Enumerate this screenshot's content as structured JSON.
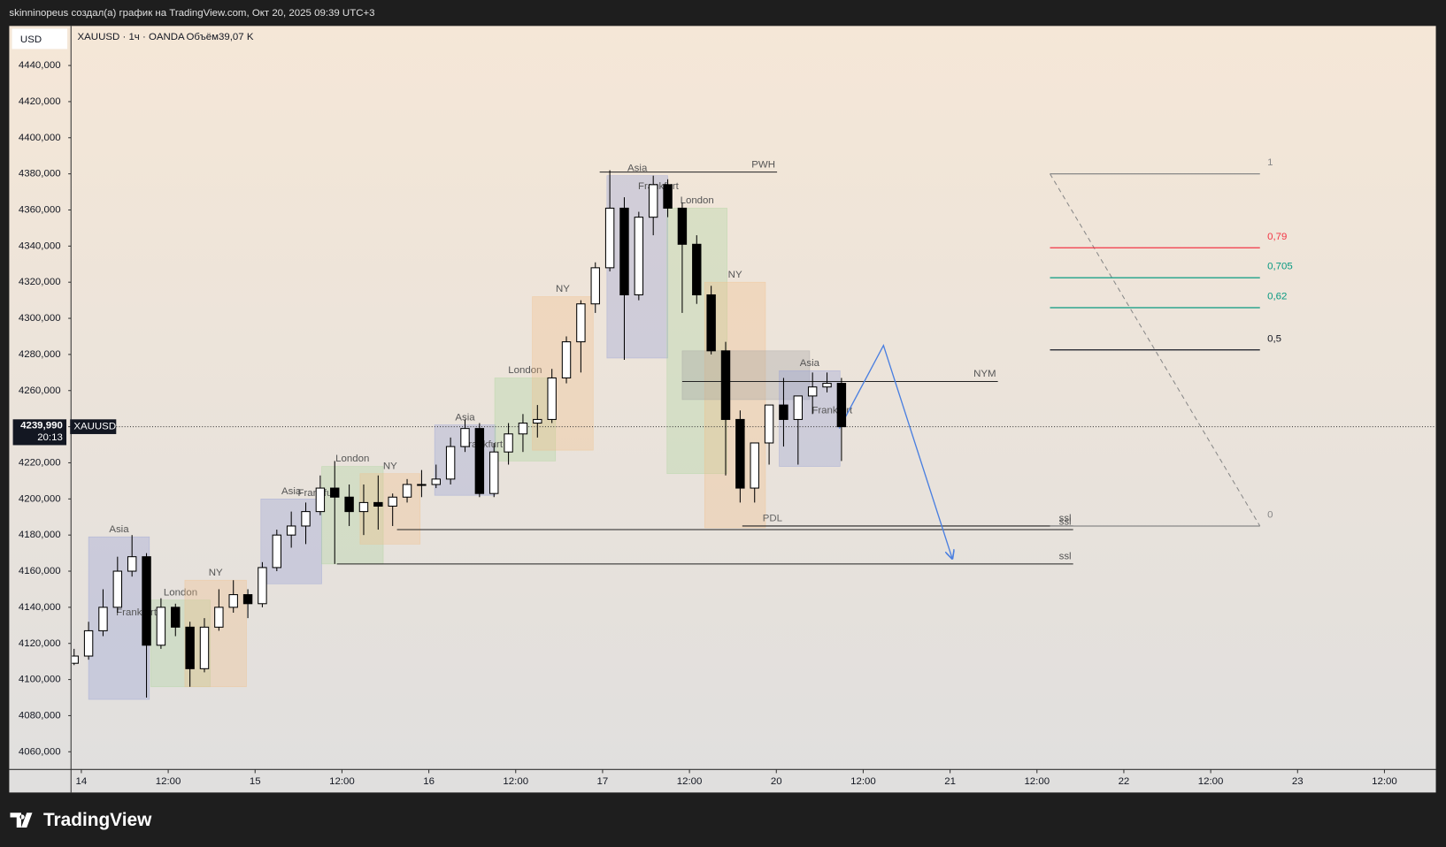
{
  "header": {
    "title": "skinninopeus создал(а) график на TradingView.com, Окт 20, 2025 09:39 UTC+3"
  },
  "footer": {
    "brand": "TradingView"
  },
  "chart_data": {
    "type": "candlestick",
    "currency": "USD",
    "symbol_legend": "XAUUSD · 1ч · OANDA",
    "volume_legend": "Объём39,07 K",
    "symbol": "XAUUSD",
    "countdown": "20:13",
    "last_price": {
      "value": 4239.99,
      "label": "4239,990"
    },
    "up_color": "#ffffff",
    "down_color": "#000000",
    "x": [
      -1,
      1,
      3,
      5,
      7,
      9,
      11,
      13,
      15,
      17,
      19,
      21,
      23,
      25,
      27,
      29,
      31,
      33,
      35,
      37,
      39,
      41,
      43,
      45,
      47,
      49,
      51,
      53,
      55,
      57,
      59,
      61,
      63,
      65,
      67,
      69,
      71,
      73,
      75,
      77,
      79,
      81,
      83,
      85,
      87,
      89,
      91,
      93,
      95,
      97,
      99,
      101,
      103,
      105
    ],
    "open": [
      4109,
      4113,
      4127,
      4140,
      4160,
      4168,
      4119,
      4140,
      4129,
      4106,
      4129,
      4140,
      4147,
      4142,
      4162,
      4180,
      4185,
      4193,
      4206,
      4201,
      4193,
      4198,
      4196,
      4201,
      4208,
      4208,
      4211,
      4229,
      4239,
      4203,
      4226,
      4236,
      4242,
      4244,
      4267,
      4287,
      4308,
      4328,
      4361,
      4313,
      4356,
      4374,
      4361,
      4341,
      4313,
      4282,
      4244,
      4206,
      4231,
      4252,
      4244,
      4257,
      4262,
      4264
    ],
    "high": [
      4117,
      4132,
      4150,
      4168,
      4180,
      4170,
      4145,
      4142,
      4132,
      4134,
      4150,
      4155,
      4150,
      4165,
      4183,
      4193,
      4198,
      4213,
      4221,
      4208,
      4208,
      4213,
      4203,
      4211,
      4216,
      4219,
      4234,
      4244,
      4242,
      4231,
      4242,
      4247,
      4252,
      4272,
      4290,
      4310,
      4331,
      4382,
      4367,
      4359,
      4379,
      4377,
      4364,
      4346,
      4318,
      4287,
      4249,
      4231,
      4252,
      4267,
      4257,
      4270,
      4270,
      4267
    ],
    "low": [
      4108,
      4111,
      4124,
      4137,
      4157,
      4090,
      4117,
      4124,
      4096,
      4104,
      4127,
      4137,
      4134,
      4140,
      4160,
      4173,
      4175,
      4191,
      4164,
      4185,
      4180,
      4183,
      4185,
      4198,
      4201,
      4206,
      4208,
      4226,
      4201,
      4201,
      4219,
      4226,
      4234,
      4242,
      4264,
      4270,
      4303,
      4326,
      4277,
      4310,
      4346,
      4356,
      4303,
      4308,
      4280,
      4213,
      4198,
      4198,
      4219,
      4229,
      4219,
      4247,
      4259,
      4221
    ],
    "close": [
      4113,
      4127,
      4140,
      4160,
      4168,
      4119,
      4140,
      4129,
      4106,
      4129,
      4140,
      4147,
      4142,
      4162,
      4180,
      4185,
      4193,
      4206,
      4201,
      4193,
      4198,
      4196,
      4201,
      4208,
      4208,
      4211,
      4229,
      4239,
      4203,
      4226,
      4236,
      4242,
      4244,
      4267,
      4287,
      4308,
      4328,
      4361,
      4313,
      4356,
      4374,
      4361,
      4341,
      4313,
      4282,
      4244,
      4206,
      4231,
      4252,
      4244,
      4257,
      4262,
      4264,
      4239.99
    ],
    "xlim": [
      -1.3,
      187.1
    ],
    "xticks": [
      {
        "value": 0,
        "label": "14"
      },
      {
        "value": 12,
        "label": "12:00"
      },
      {
        "value": 24,
        "label": "15"
      },
      {
        "value": 36,
        "label": "12:00"
      },
      {
        "value": 48,
        "label": "16"
      },
      {
        "value": 60,
        "label": "12:00"
      },
      {
        "value": 72,
        "label": "17"
      },
      {
        "value": 84,
        "label": "12:00"
      },
      {
        "value": 96,
        "label": "20"
      },
      {
        "value": 108,
        "label": "12:00"
      },
      {
        "value": 120,
        "label": "21"
      },
      {
        "value": 132,
        "label": "12:00"
      },
      {
        "value": 144,
        "label": "22"
      },
      {
        "value": 156,
        "label": "12:00"
      },
      {
        "value": 168,
        "label": "23"
      },
      {
        "value": 180,
        "label": "12:00"
      }
    ],
    "ylim": [
      4050.2,
      4461.9
    ],
    "yticks": [
      {
        "value": 4060,
        "label": "4060,000"
      },
      {
        "value": 4080,
        "label": "4080,000"
      },
      {
        "value": 4100,
        "label": "4100,000"
      },
      {
        "value": 4120,
        "label": "4120,000"
      },
      {
        "value": 4140,
        "label": "4140,000"
      },
      {
        "value": 4160,
        "label": "4160,000"
      },
      {
        "value": 4180,
        "label": "4180,000"
      },
      {
        "value": 4200,
        "label": "4200,000"
      },
      {
        "value": 4220,
        "label": "4220,000"
      },
      {
        "value": 4240,
        "label": "4240,000"
      },
      {
        "value": 4260,
        "label": "4260,000"
      },
      {
        "value": 4280,
        "label": "4280,000"
      },
      {
        "value": 4300,
        "label": "4300,000"
      },
      {
        "value": 4320,
        "label": "4320,000"
      },
      {
        "value": 4340,
        "label": "4340,000"
      },
      {
        "value": 4360,
        "label": "4360,000"
      },
      {
        "value": 4380,
        "label": "4380,000"
      },
      {
        "value": 4400,
        "label": "4400,000"
      },
      {
        "value": 4420,
        "label": "4420,000"
      },
      {
        "value": 4440,
        "label": "4440,000"
      }
    ],
    "sessions": [
      {
        "label": "Asia",
        "x": [
          1.0,
          9.4
        ],
        "y": [
          4089,
          4179
        ],
        "color": "#8f9bd6"
      },
      {
        "label": "London",
        "x": [
          9.6,
          17.8
        ],
        "y": [
          4096,
          4144
        ],
        "color": "#a9d39a"
      },
      {
        "label": "NY",
        "x": [
          14.3,
          22.8
        ],
        "y": [
          4096,
          4155
        ],
        "color": "#f2bd85"
      },
      {
        "label": "Asia",
        "x": [
          24.8,
          33.2
        ],
        "y": [
          4153,
          4200
        ],
        "color": "#8f9bd6"
      },
      {
        "label": "London",
        "x": [
          33.2,
          41.7
        ],
        "y": [
          4164,
          4218
        ],
        "color": "#a9d39a"
      },
      {
        "label": "NY",
        "x": [
          38.5,
          46.8
        ],
        "y": [
          4175,
          4214
        ],
        "color": "#f2bd85"
      },
      {
        "label": "Asia",
        "x": [
          48.8,
          57.2
        ],
        "y": [
          4202,
          4241
        ],
        "color": "#8f9bd6"
      },
      {
        "label": "London",
        "x": [
          57.1,
          65.5
        ],
        "y": [
          4221,
          4267
        ],
        "color": "#a9d39a"
      },
      {
        "label": "NY",
        "x": [
          62.3,
          70.7
        ],
        "y": [
          4227,
          4312
        ],
        "color": "#f2bd85"
      },
      {
        "label": "Asia",
        "x": [
          72.6,
          81.0
        ],
        "y": [
          4278,
          4379
        ],
        "color": "#8f9bd6"
      },
      {
        "label": "London",
        "x": [
          80.9,
          89.2
        ],
        "y": [
          4214,
          4361
        ],
        "color": "#a9d39a"
      },
      {
        "label": "NY",
        "x": [
          86.1,
          94.5
        ],
        "y": [
          4184,
          4320
        ],
        "color": "#f2bd85"
      },
      {
        "x": [
          83.0,
          100.6
        ],
        "y": [
          4255,
          4282
        ],
        "color": "#9e9e9e"
      },
      {
        "label": "Asia",
        "x": [
          96.4,
          104.8
        ],
        "y": [
          4218,
          4271
        ],
        "color": "#8f9bd6"
      }
    ],
    "notes": [
      {
        "text": "Frankfurt",
        "x": 7.6,
        "y": 4137
      },
      {
        "text": "Frankfurt",
        "x": 32.7,
        "y": 4203
      },
      {
        "text": "Frankfurt",
        "x": 55.4,
        "y": 4230
      },
      {
        "text": "Frankfurt",
        "x": 79.7,
        "y": 4373
      },
      {
        "text": "Frankfurt",
        "x": 103.7,
        "y": 4249
      }
    ],
    "levels": [
      {
        "end_label": "PWH",
        "price": 4381,
        "x": [
          71.6,
          96.1
        ]
      },
      {
        "end_label": "NYM",
        "price": 4265,
        "x": [
          83.0,
          126.6
        ]
      },
      {
        "label": "PDL",
        "end_label": "ssl",
        "price": 4185,
        "x": [
          91.3,
          137.0
        ]
      },
      {
        "end_label": "ssl",
        "price": 4183,
        "x": [
          43.6,
          137.0
        ]
      },
      {
        "end_label": "ssl",
        "price": 4164,
        "x": [
          35.3,
          137.0
        ]
      }
    ],
    "projection": {
      "color": "#4a7fe0",
      "x": [
        104.7,
        110.8,
        120.3
      ],
      "y": [
        4239,
        4285,
        4167
      ]
    },
    "fib": {
      "x": [
        133.8,
        162.8
      ],
      "prices": [
        4185,
        4380
      ],
      "levels": [
        {
          "ratio": 1,
          "color": "#888888"
        },
        {
          "ratio": {
            "value": 0.79,
            "label": "0,79"
          },
          "color": "#f23645"
        },
        {
          "ratio": {
            "value": 0.705,
            "label": "0,705"
          },
          "color": "#089981"
        },
        {
          "ratio": {
            "value": 0.62,
            "label": "0,62"
          },
          "color": "#089981"
        },
        {
          "ratio": {
            "value": 0.5,
            "label": "0,5"
          },
          "color": "#131722"
        },
        {
          "ratio": 0,
          "color": "#888888"
        }
      ]
    }
  }
}
